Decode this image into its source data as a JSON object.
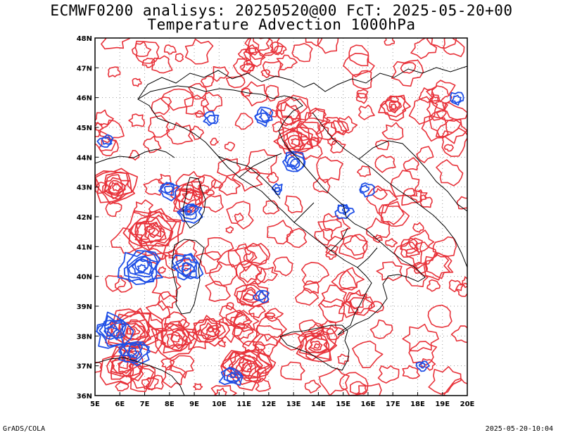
{
  "title_line1": "ECMWF0200 analisys: 20250520@00 FcT: 2025-05-20+00",
  "title_line2": "Temperature Advection 1000hPa",
  "footer_left": "GrADS/COLA",
  "footer_right": "2025-05-20-10:04",
  "lat_labels": [
    "48N",
    "47N",
    "46N",
    "45N",
    "44N",
    "43N",
    "42N",
    "41N",
    "40N",
    "39N",
    "38N",
    "37N",
    "36N"
  ],
  "lon_labels": [
    "5E",
    "6E",
    "7E",
    "8E",
    "9E",
    "10E",
    "11E",
    "12E",
    "13E",
    "14E",
    "15E",
    "16E",
    "17E",
    "18E",
    "19E",
    "20E"
  ],
  "colors": {
    "warm": "#e8323a",
    "cold": "#1f4fe6",
    "coast": "#000000",
    "grid": "#9a9a9a"
  }
}
